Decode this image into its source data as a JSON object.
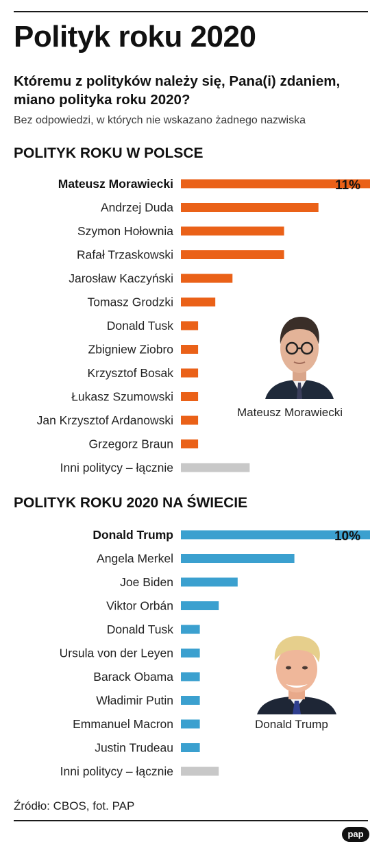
{
  "title": "Polityk roku 2020",
  "question": "Któremu z polityków należy się, Pana(i) zdaniem, miano polityka roku 2020?",
  "note": "Bez odpowiedzi, w których nie wskazano żadnego nazwiska",
  "source": "Źródło: CBOS, fot. PAP",
  "logo": "pap",
  "colors": {
    "poland": "#ea6118",
    "world": "#3ba0cf",
    "other": "#c8c8c8"
  },
  "sections": {
    "poland": {
      "title": "POLITYK ROKU W POLSCE",
      "photo_caption": "Mateusz Morawiecki"
    },
    "world": {
      "title": "POLITYK ROKU 2020 NA ŚWIECIE",
      "photo_caption": "Donald Trump"
    }
  },
  "chart_data": [
    {
      "type": "bar",
      "orientation": "horizontal",
      "title": "POLITYK ROKU W POLSCE",
      "unit": "%",
      "xlim": [
        0,
        11
      ],
      "categories": [
        "Mateusz Morawiecki",
        "Andrzej Duda",
        "Szymon Hołownia",
        "Rafał Trzaskowski",
        "Jarosław Kaczyński",
        "Tomasz Grodzki",
        "Donald Tusk",
        "Zbigniew Ziobro",
        "Krzysztof Bosak",
        "Łukasz Szumowski",
        "Jan Krzysztof Ardanowski",
        "Grzegorz Braun",
        "Inni politycy – łącznie"
      ],
      "values": [
        11,
        8,
        6,
        6,
        3,
        2,
        1,
        1,
        1,
        1,
        1,
        1,
        4
      ],
      "highlight": 0,
      "data_labels": [
        "11%"
      ]
    },
    {
      "type": "bar",
      "orientation": "horizontal",
      "title": "POLITYK ROKU 2020 NA ŚWIECIE",
      "unit": "%",
      "xlim": [
        0,
        10
      ],
      "categories": [
        "Donald Trump",
        "Angela Merkel",
        "Joe Biden",
        "Viktor Orbán",
        "Donald Tusk",
        "Ursula von der Leyen",
        "Barack Obama",
        "Władimir Putin",
        "Emmanuel Macron",
        "Justin Trudeau",
        "Inni politycy – łącznie"
      ],
      "values": [
        10,
        6,
        3,
        2,
        1,
        1,
        1,
        1,
        1,
        1,
        2
      ],
      "highlight": 0,
      "data_labels": [
        "10%"
      ]
    }
  ]
}
